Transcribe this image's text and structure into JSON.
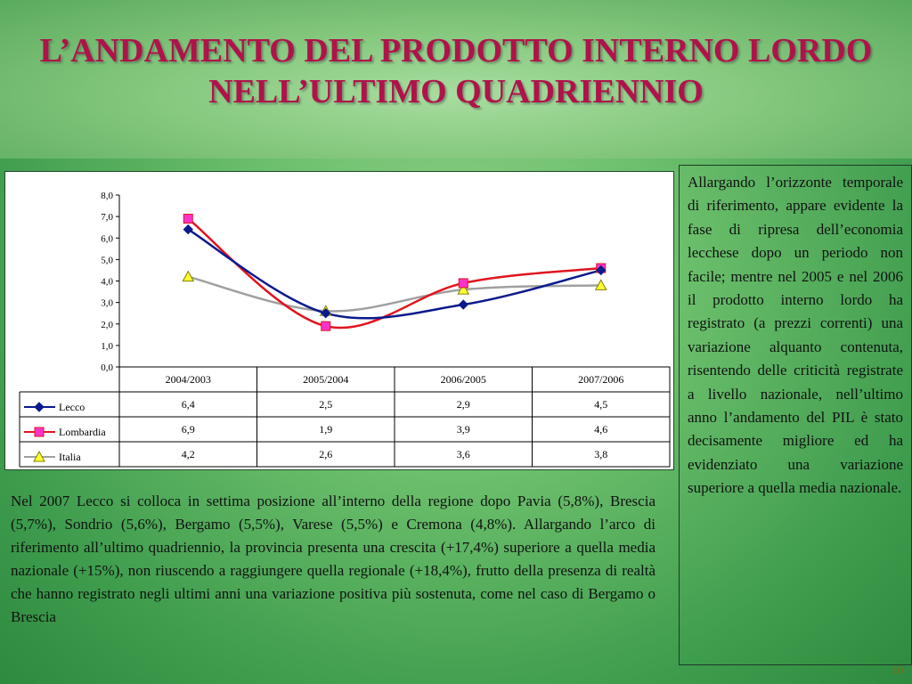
{
  "slide": {
    "title": "L’ANDAMENTO DEL PRODOTTO INTERNO LORDO NELL’ULTIMO QUADRIENNIO",
    "page_number": "10",
    "left_paragraph": "Nel 2007 Lecco si colloca in settima posizione all’interno della regione dopo Pavia (5,8%), Brescia (5,7%), Sondrio (5,6%), Bergamo (5,5%), Varese (5,5%) e Cremona (4,8%). Allargando l’arco di riferimento all’ultimo quadriennio, la provincia presenta una crescita (+17,4%) superiore a quella media nazionale (+15%), non riuscendo a raggiungere quella regionale (+18,4%), frutto della presenza di realtà che hanno registrato negli ultimi anni una variazione positiva più sostenuta, come nel caso di Bergamo o Brescia",
    "right_paragraph": "Allargando l’orizzonte temporale di riferimento, appare evidente la fase di ripresa dell’economia lecchese dopo un periodo non facile; mentre nel 2005 e nel 2006 il prodotto interno lordo ha registrato (a prezzi correnti) una variazione alquanto contenuta, risentendo delle criticità registrate a livello nazionale, nell’ultimo anno l’andamento del PIL è stato decisamente migliore ed ha evidenziato una variazione superiore a quella media nazionale."
  },
  "chart_data": {
    "type": "line",
    "categories": [
      "2004/2003",
      "2005/2004",
      "2006/2005",
      "2007/2006"
    ],
    "ylim": [
      0,
      8
    ],
    "y_ticks": [
      "0,0",
      "1,0",
      "2,0",
      "3,0",
      "4,0",
      "5,0",
      "6,0",
      "7,0",
      "8,0"
    ],
    "grid": false,
    "smooth": true,
    "data_table": true,
    "series": [
      {
        "name": "Lecco",
        "values": [
          6.4,
          2.5,
          2.9,
          4.5
        ],
        "labels": [
          "6,4",
          "2,5",
          "2,9",
          "4,5"
        ],
        "color": "#0a1a8c",
        "marker": "diamond",
        "marker_fill": "#0a1a8c"
      },
      {
        "name": "Lombardia",
        "values": [
          6.9,
          1.9,
          3.9,
          4.6
        ],
        "labels": [
          "6,9",
          "1,9",
          "3,9",
          "4,6"
        ],
        "color": "#e0141e",
        "marker": "square",
        "marker_fill": "#ff33cc"
      },
      {
        "name": "Italia",
        "values": [
          4.2,
          2.6,
          3.6,
          3.8
        ],
        "labels": [
          "4,2",
          "2,6",
          "3,6",
          "3,8"
        ],
        "color": "#a0a0a0",
        "marker": "triangle",
        "marker_fill": "#ffff33"
      }
    ]
  }
}
